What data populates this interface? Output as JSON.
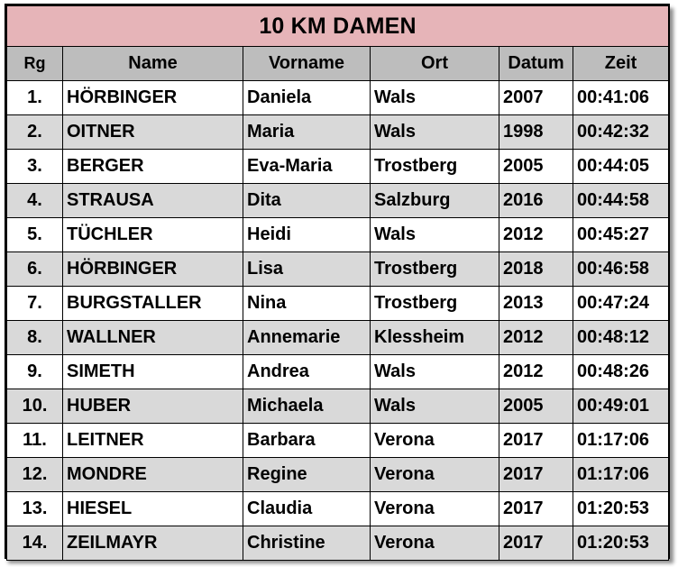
{
  "title": "10 KM DAMEN",
  "headers": {
    "rank": "Rg",
    "name": "Name",
    "first": "Vorname",
    "place": "Ort",
    "date": "Datum",
    "time": "Zeit"
  },
  "rows": [
    {
      "rank": "1.",
      "name": "HÖRBINGER",
      "first": "Daniela",
      "place": "Wals",
      "date": "2007",
      "time": "00:41:06"
    },
    {
      "rank": "2.",
      "name": "OITNER",
      "first": "Maria",
      "place": "Wals",
      "date": "1998",
      "time": "00:42:32"
    },
    {
      "rank": "3.",
      "name": "BERGER",
      "first": "Eva-Maria",
      "place": "Trostberg",
      "date": "2005",
      "time": "00:44:05"
    },
    {
      "rank": "4.",
      "name": "STRAUSA",
      "first": "Dita",
      "place": "Salzburg",
      "date": "2016",
      "time": "00:44:58"
    },
    {
      "rank": "5.",
      "name": "TÜCHLER",
      "first": "Heidi",
      "place": "Wals",
      "date": "2012",
      "time": "00:45:27"
    },
    {
      "rank": "6.",
      "name": "HÖRBINGER",
      "first": "Lisa",
      "place": "Trostberg",
      "date": "2018",
      "time": "00:46:58"
    },
    {
      "rank": "7.",
      "name": "BURGSTALLER",
      "first": "Nina",
      "place": "Trostberg",
      "date": "2013",
      "time": "00:47:24"
    },
    {
      "rank": "8.",
      "name": "WALLNER",
      "first": "Annemarie",
      "place": "Klessheim",
      "date": "2012",
      "time": "00:48:12"
    },
    {
      "rank": "9.",
      "name": "SIMETH",
      "first": "Andrea",
      "place": "Wals",
      "date": "2012",
      "time": "00:48:26"
    },
    {
      "rank": "10.",
      "name": "HUBER",
      "first": "Michaela",
      "place": "Wals",
      "date": "2005",
      "time": "00:49:01"
    },
    {
      "rank": "11.",
      "name": "LEITNER",
      "first": "Barbara",
      "place": "Verona",
      "date": "2017",
      "time": "01:17:06"
    },
    {
      "rank": "12.",
      "name": "MONDRE",
      "first": "Regine",
      "place": "Verona",
      "date": "2017",
      "time": "01:17:06"
    },
    {
      "rank": "13.",
      "name": "HIESEL",
      "first": "Claudia",
      "place": "Verona",
      "date": "2017",
      "time": "01:20:53"
    },
    {
      "rank": "14.",
      "name": "ZEILMAYR",
      "first": "Christine",
      "place": "Verona",
      "date": "2017",
      "time": "01:20:53"
    }
  ],
  "colors": {
    "title_bg": "#e6b4b8",
    "header_bg": "#bdbdbd",
    "alt_row_bg": "#d9d9d9",
    "row_bg": "#ffffff",
    "border": "#000000"
  }
}
